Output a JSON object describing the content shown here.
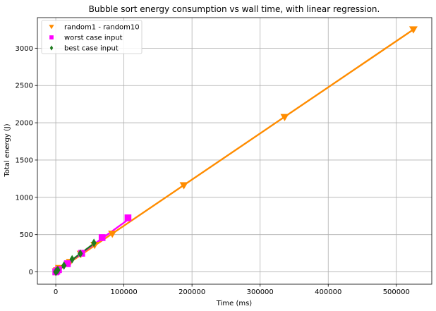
{
  "chart_data": {
    "type": "scatter",
    "title": "Bubble sort energy consumption vs wall time, with linear regression.",
    "xlabel": "Time (ms)",
    "ylabel": "Total energy (J)",
    "xlim": [
      -27000,
      552000
    ],
    "ylim": [
      -165,
      3410
    ],
    "xticks": [
      0,
      100000,
      200000,
      300000,
      400000,
      500000
    ],
    "yticks": [
      0,
      500,
      1000,
      1500,
      2000,
      2500,
      3000
    ],
    "grid": true,
    "legend_position": "top-left",
    "series": [
      {
        "name": "random1 - random10",
        "marker": "triangle-down",
        "color": "#ff8c00",
        "points": [
          {
            "x": 500,
            "y": 5
          },
          {
            "x": 2000,
            "y": 20
          },
          {
            "x": 5000,
            "y": 50
          },
          {
            "x": 21000,
            "y": 130
          },
          {
            "x": 37000,
            "y": 240
          },
          {
            "x": 57000,
            "y": 360
          },
          {
            "x": 83000,
            "y": 510
          },
          {
            "x": 188000,
            "y": 1160
          },
          {
            "x": 336000,
            "y": 2075
          },
          {
            "x": 525000,
            "y": 3250
          }
        ],
        "regression": {
          "x": [
            0,
            525000
          ],
          "y": [
            0,
            3250
          ],
          "color": "#ff8c00"
        }
      },
      {
        "name": "worst case input",
        "marker": "square",
        "color": "#ff00ff",
        "points": [
          {
            "x": 0,
            "y": 0
          },
          {
            "x": 1500,
            "y": 10
          },
          {
            "x": 4000,
            "y": 30
          },
          {
            "x": 17000,
            "y": 110
          },
          {
            "x": 38000,
            "y": 250
          },
          {
            "x": 68000,
            "y": 460
          },
          {
            "x": 106000,
            "y": 725
          }
        ],
        "regression": {
          "x": [
            0,
            106000
          ],
          "y": [
            0,
            700
          ],
          "color": "#ff00ff"
        }
      },
      {
        "name": "best case input",
        "marker": "diamond",
        "color": "#1f7a1f",
        "points": [
          {
            "x": 0,
            "y": 0
          },
          {
            "x": 1000,
            "y": 8
          },
          {
            "x": 3000,
            "y": 25
          },
          {
            "x": 12000,
            "y": 85
          },
          {
            "x": 24000,
            "y": 170
          },
          {
            "x": 36000,
            "y": 245
          },
          {
            "x": 56000,
            "y": 390
          }
        ],
        "regression": {
          "x": [
            0,
            56000
          ],
          "y": [
            0,
            380
          ],
          "color": "#1f7a1f"
        }
      }
    ]
  }
}
